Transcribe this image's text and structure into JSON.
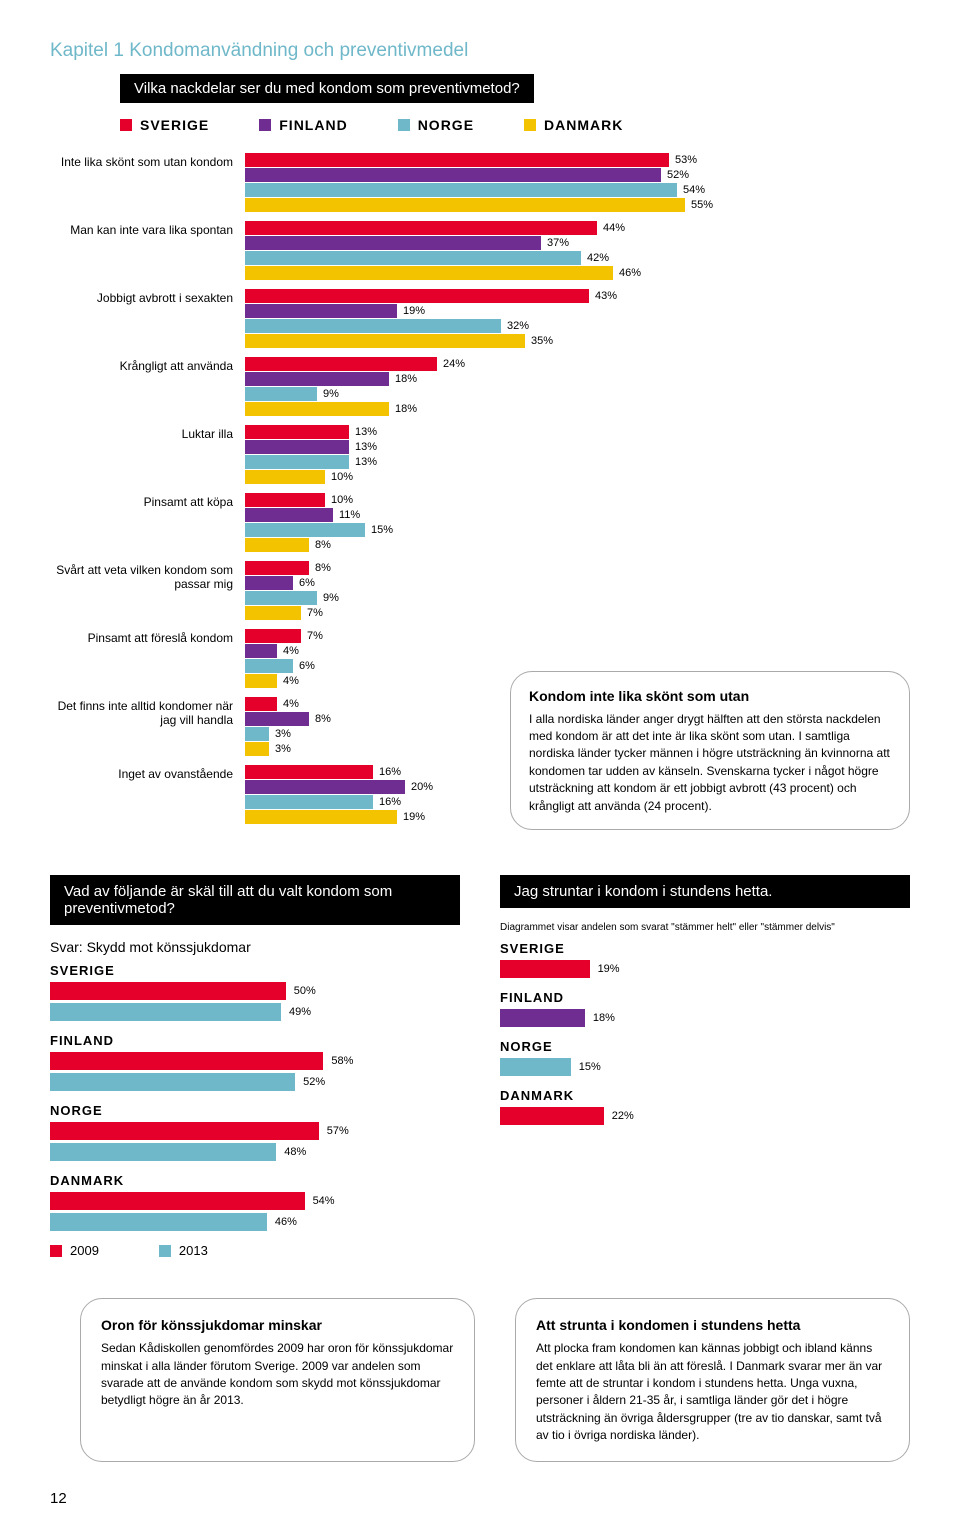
{
  "chapter": {
    "prefix": "Kapitel 1",
    "title": "Kondomanvändning och preventivmedel"
  },
  "q1": "Vilka nackdelar ser du med kondom som preventivmetod?",
  "colors": {
    "sverige": "#e4002b",
    "finland": "#6f2c91",
    "norge": "#6fb8c9",
    "danmark": "#f4c300"
  },
  "legend": [
    {
      "label": "SVERIGE",
      "color": "#e4002b"
    },
    {
      "label": "FINLAND",
      "color": "#6f2c91"
    },
    {
      "label": "NORGE",
      "color": "#6fb8c9"
    },
    {
      "label": "DANMARK",
      "color": "#f4c300"
    }
  ],
  "chart1": {
    "max": 60,
    "categories": [
      {
        "label": "Inte lika skönt som utan kondom",
        "v": [
          53,
          52,
          54,
          55
        ]
      },
      {
        "label": "Man kan inte vara lika spontan",
        "v": [
          44,
          37,
          42,
          46
        ]
      },
      {
        "label": "Jobbigt avbrott i sexakten",
        "v": [
          43,
          19,
          32,
          35
        ]
      },
      {
        "label": "Krångligt att använda",
        "v": [
          24,
          18,
          9,
          18
        ]
      },
      {
        "label": "Luktar illa",
        "v": [
          13,
          13,
          13,
          10
        ]
      },
      {
        "label": "Pinsamt att köpa",
        "v": [
          10,
          11,
          15,
          8
        ]
      },
      {
        "label": "Svårt att veta vilken kondom som passar mig",
        "v": [
          8,
          6,
          9,
          7
        ]
      },
      {
        "label": "Pinsamt att föreslå kondom",
        "v": [
          7,
          4,
          6,
          4
        ]
      },
      {
        "label": "Det finns inte alltid kondomer när jag vill handla",
        "v": [
          4,
          8,
          3,
          3
        ]
      },
      {
        "label": "Inget av ovanstående",
        "v": [
          16,
          20,
          16,
          19
        ]
      }
    ]
  },
  "callout1": {
    "title": "Kondom inte lika skönt som utan",
    "body": "I alla nordiska länder anger drygt hälften att den största nackdelen med kondom är att det inte är lika skönt som utan. I samtliga nordiska länder tycker männen i högre utsträckning än kvinnorna att kondomen tar udden av känseln. Svenskarna tycker i något högre utsträckning att kondom är ett jobbigt avbrott (43 procent) och krångligt att använda (24 procent)."
  },
  "q2": "Vad av följande är skäl till att du valt kondom som preventivmetod?",
  "q2ans": "Svar: Skydd mot könssjukdomar",
  "q3": "Jag struntar i kondom i stundens hetta.",
  "q3ans": "Diagrammet visar andelen som svarat \"stämmer helt\" eller \"stämmer delvis\"",
  "years": {
    "a": "2009",
    "b": "2013",
    "color_a": "#e4002b",
    "color_b": "#6fb8c9"
  },
  "chart2": {
    "max": 70,
    "rows": [
      {
        "country": "SVERIGE",
        "pair": [
          50,
          49
        ]
      },
      {
        "country": "FINLAND",
        "pair": [
          58,
          52
        ]
      },
      {
        "country": "NORGE",
        "pair": [
          57,
          48
        ]
      },
      {
        "country": "DANMARK",
        "pair": [
          54,
          46
        ]
      }
    ]
  },
  "chart3": {
    "max": 70,
    "country_colors": {
      "SVERIGE": "#e4002b",
      "FINLAND": "#6f2c91",
      "NORGE": "#6fb8c9",
      "DANMARK": "#e4002b"
    },
    "rows": [
      {
        "country": "SVERIGE",
        "v": 19,
        "color": "#e4002b"
      },
      {
        "country": "FINLAND",
        "v": 18,
        "color": "#6f2c91"
      },
      {
        "country": "NORGE",
        "v": 15,
        "color": "#6fb8c9"
      },
      {
        "country": "DANMARK",
        "v": 22,
        "color": "#e4002b"
      }
    ]
  },
  "callout2": {
    "title": "Oron för könssjukdomar minskar",
    "body": "Sedan Kådiskollen genomfördes 2009 har oron för könssjukdomar minskat i alla länder förutom Sverige. 2009 var andelen som svarade att de använde kondom som skydd mot könssjukdomar betydligt högre än år 2013."
  },
  "callout3": {
    "title": "Att strunta i kondomen i stundens hetta",
    "body": "Att plocka fram kondomen kan kännas jobbigt och ibland känns det enklare att låta bli än att föreslå. I Danmark svarar mer än var femte att de struntar i kondom i stundens hetta. Unga vuxna, personer i åldern 21-35 år, i samtliga länder gör det i högre utsträckning än övriga åldersgrupper (tre av tio danskar, samt två av tio i övriga nordiska länder)."
  },
  "page": "12"
}
